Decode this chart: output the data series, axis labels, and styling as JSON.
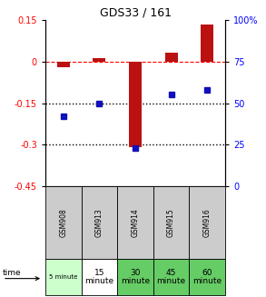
{
  "title": "GDS33 / 161",
  "samples": [
    "GSM908",
    "GSM913",
    "GSM914",
    "GSM915",
    "GSM916"
  ],
  "log_ratio": [
    -0.022,
    0.012,
    -0.31,
    0.032,
    0.132
  ],
  "percentile_rank": [
    42,
    50,
    23,
    55,
    58
  ],
  "time_labels_top": [
    "5 minute",
    "15",
    "30",
    "45",
    "60"
  ],
  "time_labels_bot": [
    "",
    "minute",
    "minute",
    "minute",
    "minute"
  ],
  "time_colors": [
    "#ccffcc",
    "#ffffff",
    "#66cc66",
    "#66cc66",
    "#66cc66"
  ],
  "sample_bg": "#cccccc",
  "ylim_left": [
    -0.45,
    0.15
  ],
  "ylim_right": [
    0,
    100
  ],
  "left_ticks": [
    0.15,
    0.0,
    -0.15,
    -0.3,
    -0.45
  ],
  "right_ticks": [
    100,
    75,
    50,
    25,
    0
  ],
  "hlines_dotted": [
    -0.15,
    -0.3
  ],
  "hline_dashed": 0.0,
  "bar_color": "#bb1111",
  "dot_color": "#1111bb",
  "bar_width": 0.35,
  "fig_bg": "#f0f0f0"
}
